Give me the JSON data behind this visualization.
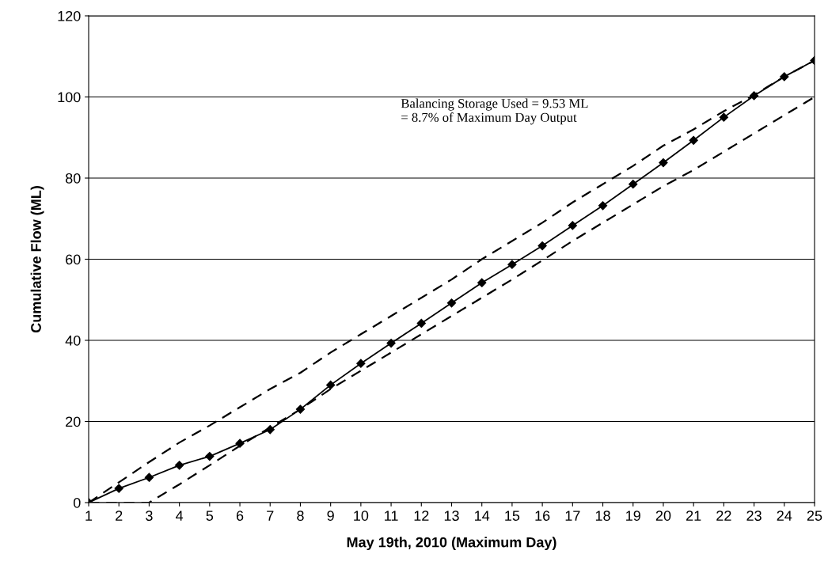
{
  "chart_data": {
    "type": "line",
    "xlabel": "May 19th, 2010 (Maximum Day)",
    "ylabel": "Cumulative Flow (ML)",
    "categories": [
      "1",
      "2",
      "3",
      "4",
      "5",
      "6",
      "7",
      "8",
      "9",
      "10",
      "11",
      "12",
      "13",
      "14",
      "15",
      "16",
      "17",
      "18",
      "19",
      "20",
      "21",
      "22",
      "23",
      "24",
      "25"
    ],
    "series": [
      {
        "color": "#000000",
        "marker": "diamond",
        "line_style": "solid",
        "values": [
          0,
          3.5,
          6.2,
          9.2,
          11.4,
          14.6,
          18,
          23,
          29,
          34.3,
          39.3,
          44.2,
          49.2,
          54.2,
          58.7,
          63.3,
          68.3,
          73.2,
          78.5,
          83.8,
          89.3,
          95,
          100.3,
          105,
          109
        ]
      },
      {
        "color": "#000000",
        "marker": "none",
        "line_style": "dashed",
        "values": [
          0,
          5,
          10,
          14.8,
          19,
          23.5,
          28,
          32,
          37,
          41.5,
          46,
          50.5,
          55,
          60,
          64.5,
          69,
          74,
          78.5,
          83,
          88,
          92,
          96.5,
          100.5,
          105,
          109
        ]
      },
      {
        "color": "#000000",
        "marker": "none",
        "line_style": "dashed",
        "values": [
          0,
          0,
          0,
          4.5,
          9.2,
          14,
          18.5,
          23,
          28,
          32.5,
          37,
          41.5,
          46,
          50.5,
          55,
          59.7,
          64.5,
          69,
          73.5,
          78,
          82,
          86.5,
          91,
          95.5,
          100
        ]
      }
    ],
    "ylim": [
      0,
      120
    ],
    "yticks": [
      0,
      20,
      40,
      60,
      80,
      100,
      120
    ],
    "grid": "y",
    "legend": false,
    "annotations": [
      "Balancing Storage Used = 9.53 ML\n= 8.7% of Maximum Day Output"
    ]
  }
}
